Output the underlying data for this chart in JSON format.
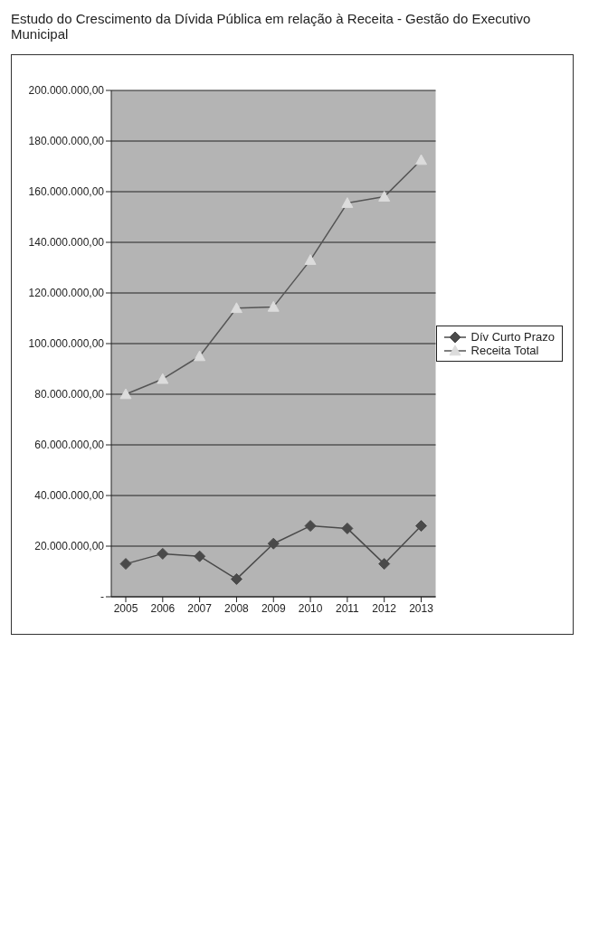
{
  "chart_data": {
    "type": "line",
    "title": "Estudo do Crescimento da Dívida Pública em relação à Receita - Gestão do Executivo Municipal",
    "categories": [
      "2005",
      "2006",
      "2007",
      "2008",
      "2009",
      "2010",
      "2011",
      "2012",
      "2013"
    ],
    "series": [
      {
        "name": "Dív Curto Prazo",
        "color": "#4a4a4a",
        "marker": "diamond",
        "values": [
          13000000,
          17000000,
          16000000,
          7000000,
          21000000,
          28000000,
          27000000,
          13000000,
          28000000
        ]
      },
      {
        "name": "Receita Total",
        "color": "#dcdcdc",
        "marker": "triangle",
        "values": [
          80000000,
          86000000,
          95000000,
          114000000,
          114500000,
          133000000,
          155500000,
          158000000,
          172500000
        ]
      }
    ],
    "ylim": [
      0,
      200000000
    ],
    "yticks": [
      {
        "value": 0,
        "label": "-"
      },
      {
        "value": 20000000,
        "label": "20.000.000,00"
      },
      {
        "value": 40000000,
        "label": "40.000.000,00"
      },
      {
        "value": 60000000,
        "label": "60.000.000,00"
      },
      {
        "value": 80000000,
        "label": "80.000.000,00"
      },
      {
        "value": 100000000,
        "label": "100.000.000,00"
      },
      {
        "value": 120000000,
        "label": "120.000.000,00"
      },
      {
        "value": 140000000,
        "label": "140.000.000,00"
      },
      {
        "value": 160000000,
        "label": "160.000.000,00"
      },
      {
        "value": 180000000,
        "label": "180.000.000,00"
      },
      {
        "value": 200000000,
        "label": "200.000.000,00"
      }
    ],
    "grid": "y",
    "legend": "right"
  }
}
